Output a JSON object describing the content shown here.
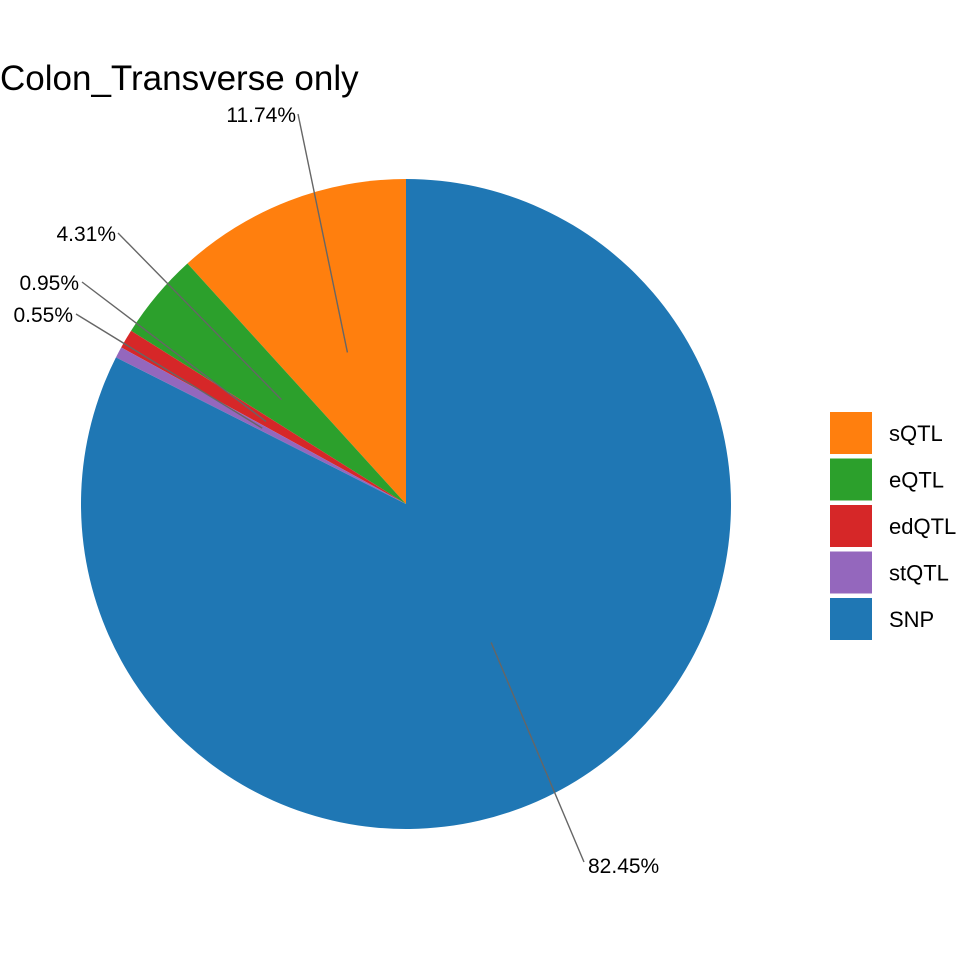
{
  "chart_data": {
    "type": "pie",
    "title": "Colon_Transverse only",
    "slices": [
      {
        "name": "sQTL",
        "value": 11.74,
        "label": "11.74%",
        "color": "#FF7F0E"
      },
      {
        "name": "eQTL",
        "value": 4.31,
        "label": "4.31%",
        "color": "#2CA02C"
      },
      {
        "name": "edQTL",
        "value": 0.95,
        "label": "0.95%",
        "color": "#D62728"
      },
      {
        "name": "stQTL",
        "value": 0.55,
        "label": "0.55%",
        "color": "#9467BD"
      },
      {
        "name": "SNP",
        "value": 82.45,
        "label": "82.45%",
        "color": "#1F77B4"
      }
    ],
    "direction": "counterclockwise",
    "start_angle": "top",
    "legend_position": "right",
    "legend": [
      "sQTL",
      "eQTL",
      "edQTL",
      "stQTL",
      "SNP"
    ]
  }
}
